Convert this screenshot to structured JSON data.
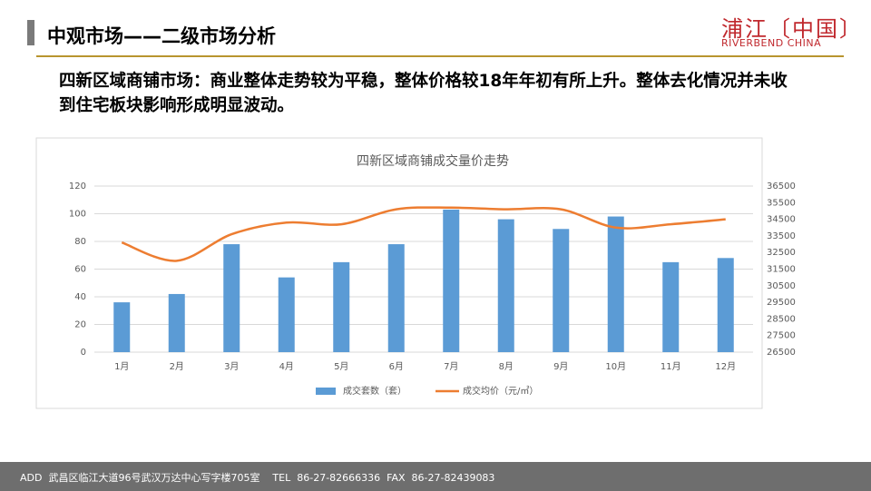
{
  "header": {
    "title": "中观市场——二级市场分析",
    "logo": "浦江〔中国〕",
    "logo_en": "RIVERBEND CHINA"
  },
  "body": {
    "text": "四新区域商铺市场：商业整体走势较为平稳，整体价格较18年年初有所上升。整体去化情况并未收到住宅板块影响形成明显波动。"
  },
  "footer": {
    "text": "ADD  武昌区临江大道96号武汉万达中心写字楼705室    TEL  86-27-82666336  FAX  86-27-82439083"
  },
  "chart_data": {
    "type": "combo",
    "title": "四新区域商铺成交量价走势",
    "categories": [
      "1月",
      "2月",
      "3月",
      "4月",
      "5月",
      "6月",
      "7月",
      "8月",
      "9月",
      "10月",
      "11月",
      "12月"
    ],
    "series": [
      {
        "name": "成交套数（套）",
        "type": "bar",
        "color": "#5b9bd5",
        "values": [
          36,
          42,
          78,
          54,
          65,
          78,
          103,
          96,
          89,
          98,
          65,
          68
        ]
      },
      {
        "name": "成交均价（元/㎡）",
        "type": "line",
        "axis": "y2",
        "color": "#ed7d31",
        "values": [
          33100,
          32000,
          33600,
          34300,
          34200,
          35100,
          35200,
          35100,
          35100,
          34000,
          34200,
          34500
        ]
      }
    ],
    "ylim": [
      0,
      120
    ],
    "yticks": [
      0,
      20,
      40,
      60,
      80,
      100,
      120
    ],
    "y2lim": [
      26500,
      36500
    ],
    "y2ticks": [
      26500,
      27500,
      28500,
      29500,
      30500,
      31500,
      32500,
      33500,
      34500,
      35500,
      36500
    ],
    "grid": true,
    "legend": "bottom"
  }
}
